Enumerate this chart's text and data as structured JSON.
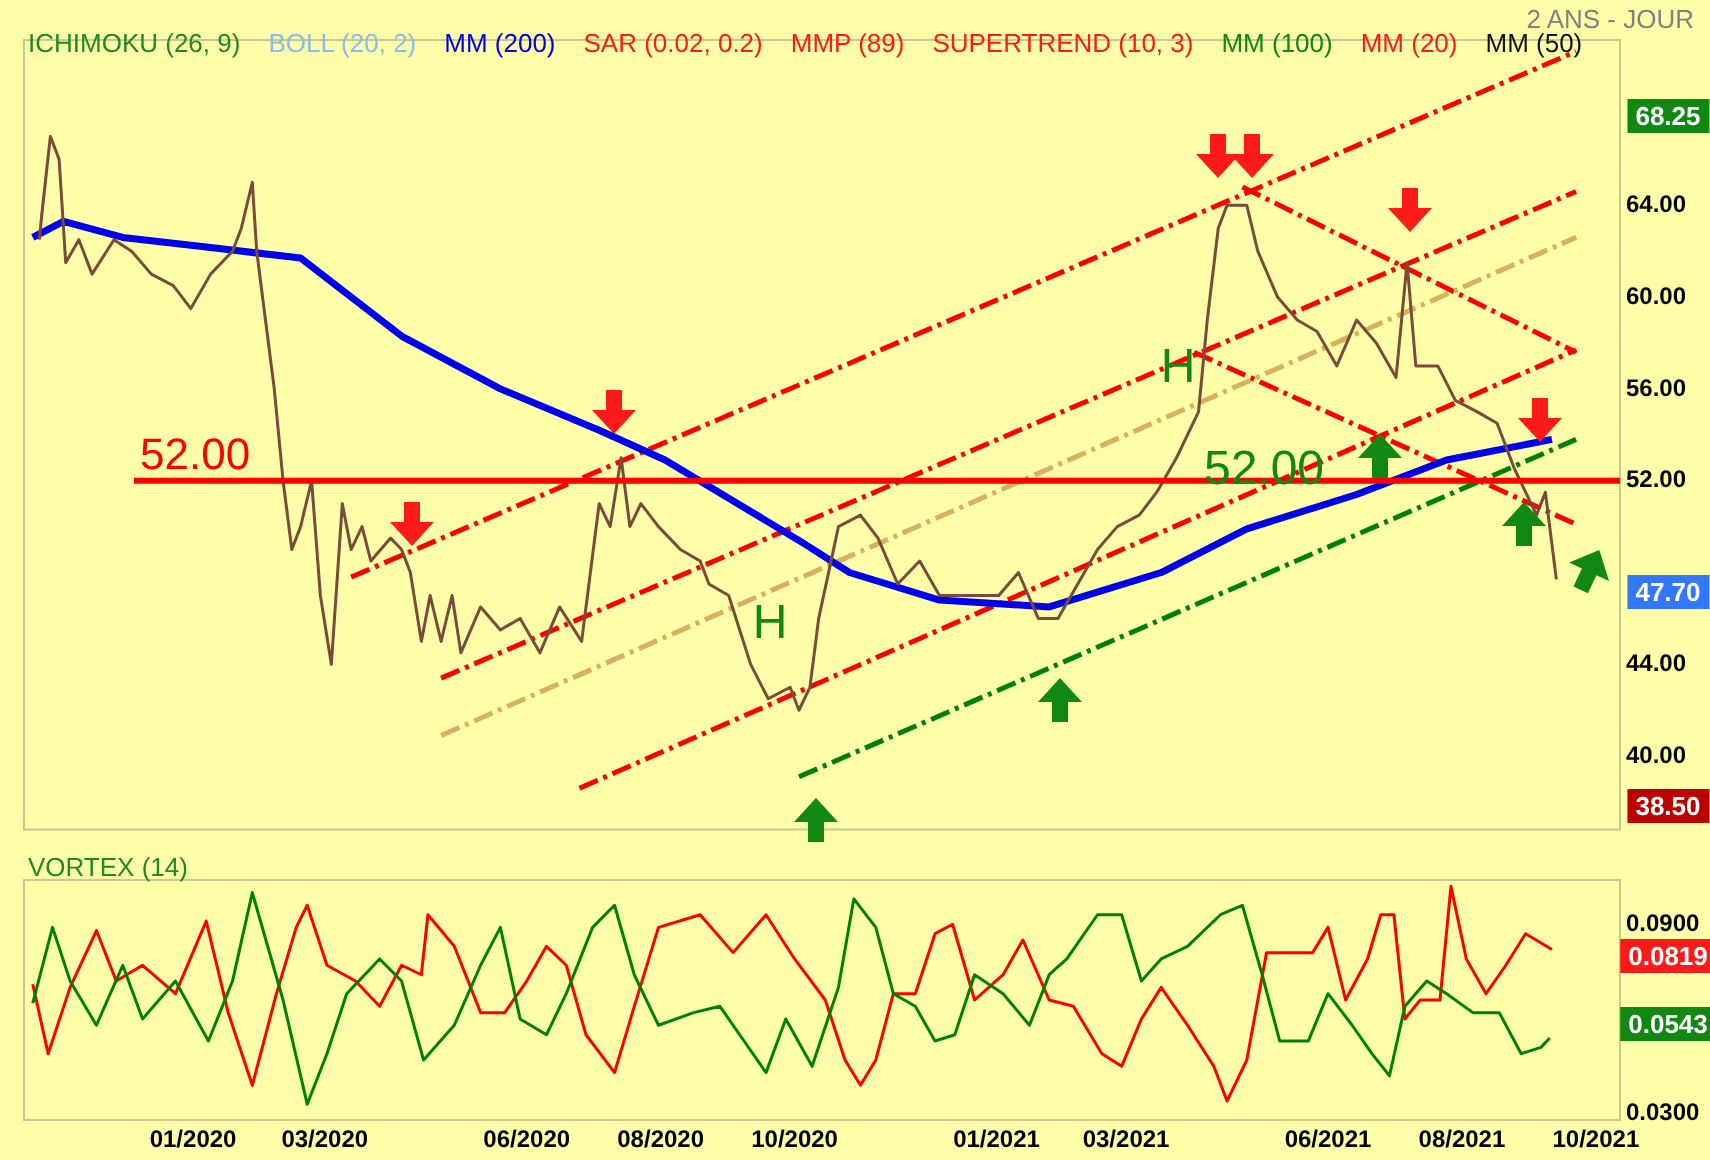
{
  "chart_data": [
    {
      "type": "line",
      "subtitle": "2 ANS - JOUR",
      "legend": "top left",
      "tick_labels": "y",
      "grid": false,
      "annotations": [
        "ICHIMOKU (26, 9)",
        "BOLL (20, 2)",
        "SAR (0.02, 0.2)",
        "MMP (89)",
        "SUPERTREND (10, 3)",
        "MM (100)",
        "MM (20)",
        "MM (50)",
        "H",
        "H",
        "52.00",
        "68.25",
        "47.70",
        "38.50"
      ],
      "x": [
        "2019-10-23",
        "2019-10-24",
        "2019-10-28",
        "2019-11-01",
        "2019-11-04",
        "2019-11-10",
        "2019-11-16",
        "2019-11-26",
        "2019-12-04",
        "2019-12-13",
        "2019-12-23",
        "2019-12-31",
        "2020-01-09",
        "2020-01-19",
        "2020-01-23",
        "2020-01-28",
        "2020-01-30",
        "2020-02-03",
        "2020-02-07",
        "2020-02-11",
        "2020-02-15",
        "2020-02-19",
        "2020-02-24",
        "2020-02-28",
        "2020-03-04",
        "2020-03-09",
        "2020-03-13",
        "2020-03-18",
        "2020-03-22",
        "2020-03-31",
        "2020-04-05",
        "2020-04-09",
        "2020-04-14",
        "2020-04-18",
        "2020-04-23",
        "2020-04-28",
        "2020-05-02",
        "2020-05-11",
        "2020-05-20",
        "2020-05-29",
        "2020-06-07",
        "2020-06-16",
        "2020-06-26",
        "2020-06-30",
        "2020-07-04",
        "2020-07-09",
        "2020-07-14",
        "2020-07-18",
        "2020-07-23",
        "2020-07-31",
        "2020-08-10",
        "2020-08-19",
        "2020-08-23",
        "2020-09-01",
        "2020-09-11",
        "2020-09-19",
        "2020-09-29",
        "2020-10-03",
        "2020-10-08",
        "2020-10-12",
        "2020-10-21",
        "2020-10-31",
        "2020-11-08",
        "2020-11-17",
        "2020-11-27",
        "2020-12-06",
        "2020-12-15",
        "2020-12-24",
        "2021-01-02",
        "2021-01-11",
        "2021-01-20",
        "2021-01-29",
        "2021-02-07",
        "2021-02-16",
        "2021-02-25",
        "2021-03-07",
        "2021-03-15",
        "2021-03-24",
        "2021-04-03",
        "2021-04-07",
        "2021-04-12",
        "2021-04-16",
        "2021-04-25",
        "2021-04-30",
        "2021-05-09",
        "2021-05-18",
        "2021-05-27",
        "2021-06-05",
        "2021-06-14",
        "2021-06-23",
        "2021-07-02",
        "2021-07-07",
        "2021-07-11",
        "2021-07-21",
        "2021-07-29",
        "2021-08-08",
        "2021-08-17",
        "2021-08-25",
        "2021-08-30",
        "2021-09-04",
        "2021-09-08",
        "2021-09-13"
      ],
      "series": [
        {
          "color": "#7a4a3a",
          "values": [
            62.5,
            63.5,
            67,
            66,
            61.5,
            62.5,
            61,
            62.5,
            62,
            61,
            60.5,
            59.5,
            61,
            62,
            63,
            65,
            62,
            59,
            56,
            52,
            49,
            50,
            52,
            47,
            44,
            51,
            49,
            50,
            48.5,
            49.5,
            49,
            48,
            45,
            47,
            45,
            47,
            44.5,
            46.5,
            45.5,
            46,
            44.5,
            46.5,
            45,
            48,
            51,
            50,
            53,
            50,
            51,
            50,
            49,
            48.5,
            47.5,
            47,
            44,
            42.5,
            43,
            42,
            43,
            46,
            50,
            50.5,
            49.5,
            47.5,
            48.5,
            47,
            47,
            47,
            47,
            48,
            46,
            46,
            47.5,
            49,
            50,
            50.5,
            51.5,
            53,
            55,
            59,
            63,
            64,
            64,
            62,
            60,
            59,
            58.5,
            57,
            59,
            58,
            56.5,
            61.5,
            57,
            57,
            55.5,
            55,
            54.5,
            52.5,
            51.5,
            50.5,
            51.5,
            47.7
          ]
        },
        {
          "name": "MM (200)",
          "color": "#0000ee",
          "x": [
            "2019-10-20",
            "2019-11-03",
            "2019-11-30",
            "2020-01-05",
            "2020-02-19",
            "2020-04-05",
            "2020-05-20",
            "2020-07-04",
            "2020-08-03",
            "2020-10-03",
            "2020-10-26",
            "2020-12-06",
            "2021-01-25",
            "2021-03-17",
            "2021-04-25",
            "2021-06-14",
            "2021-07-25",
            "2021-09-11"
          ],
          "values": [
            62.6,
            63.3,
            62.6,
            62.2,
            61.7,
            58.3,
            56,
            54.2,
            52.9,
            49.4,
            48,
            46.8,
            46.5,
            48.0,
            49.9,
            51.4,
            52.9,
            53.8
          ]
        },
        {
          "color": "#ff0000",
          "line_style": "dashed",
          "x": [
            "2020-03-13",
            "2021-09-22"
          ],
          "values": [
            47.8,
            70.7
          ]
        },
        {
          "color": "#ff0000",
          "line_style": "dashed",
          "x": [
            "2020-04-23",
            "2021-09-22"
          ],
          "values": [
            43.4,
            64.6
          ]
        },
        {
          "color": "#d8b060",
          "line_style": "dashed",
          "x": [
            "2020-04-23",
            "2021-09-22"
          ],
          "values": [
            40.9,
            62.6
          ]
        },
        {
          "color": "#ff0000",
          "line_style": "dashed",
          "x": [
            "2020-06-25",
            "2021-09-22"
          ],
          "values": [
            38.6,
            57.7
          ]
        },
        {
          "color": "#008000",
          "line_style": "dashed",
          "x": [
            "2020-10-03",
            "2021-09-22"
          ],
          "values": [
            39.1,
            53.8
          ]
        },
        {
          "color": "#ff0000",
          "line_style": "dashed",
          "x": [
            "2021-04-23",
            "2021-09-22"
          ],
          "values": [
            64.8,
            57.6
          ]
        },
        {
          "color": "#ff0000",
          "line_style": "dashed",
          "x": [
            "2021-04-01",
            "2021-09-22"
          ],
          "values": [
            57.6,
            50.1
          ]
        }
      ],
      "ref_lines": [
        {
          "axis": "y",
          "value": 52,
          "label": "52.00",
          "color": "#ff0000"
        }
      ],
      "xlim": [
        "2019-10-16",
        "2021-10-12"
      ],
      "ylim": [
        36.8,
        71.2
      ],
      "yticks": [
        {
          "value": 40,
          "label": "40.00"
        },
        {
          "value": 44,
          "label": "44.00"
        },
        {
          "value": 52,
          "label": "52.00"
        },
        {
          "value": 56,
          "label": "56.00"
        },
        {
          "value": 60,
          "label": "60.00"
        },
        {
          "value": 64,
          "label": "64.00"
        }
      ]
    },
    {
      "type": "line",
      "title": "VORTEX (14)",
      "grid": false,
      "annotations": [
        "0.0819",
        "0.0543"
      ],
      "series": [
        {
          "color": "#008000",
          "x": [
            "2019-10-20",
            "2019-10-29",
            "2019-11-06",
            "2019-11-18",
            "2019-11-30",
            "2019-12-09",
            "2019-12-24",
            "2020-01-08",
            "2020-01-19",
            "2020-01-28",
            "2020-02-11",
            "2020-02-22",
            "2020-03-02",
            "2020-03-11",
            "2020-03-26",
            "2020-04-05",
            "2020-04-15",
            "2020-04-29",
            "2020-05-11",
            "2020-05-20",
            "2020-05-29",
            "2020-06-10",
            "2020-06-19",
            "2020-07-01",
            "2020-07-11",
            "2020-07-20",
            "2020-07-31",
            "2020-08-16",
            "2020-08-28",
            "2020-09-06",
            "2020-09-18",
            "2020-09-27",
            "2020-10-09",
            "2020-10-21",
            "2020-10-28",
            "2020-11-07",
            "2020-11-15",
            "2020-11-25",
            "2020-12-04",
            "2020-12-13",
            "2020-12-22",
            "2021-01-04",
            "2021-01-16",
            "2021-01-25",
            "2021-02-02",
            "2021-02-16",
            "2021-02-27",
            "2021-03-08",
            "2021-03-17",
            "2021-03-29",
            "2021-04-13",
            "2021-04-23",
            "2021-05-02",
            "2021-05-10",
            "2021-05-23",
            "2021-06-01",
            "2021-06-12",
            "2021-06-21",
            "2021-06-29",
            "2021-07-06",
            "2021-07-16",
            "2021-07-25",
            "2021-08-06",
            "2021-08-18",
            "2021-08-28",
            "2021-09-06",
            "2021-09-10"
          ],
          "values": [
            0.065,
            0.089,
            0.072,
            0.058,
            0.077,
            0.06,
            0.072,
            0.053,
            0.072,
            0.1,
            0.066,
            0.033,
            0.049,
            0.068,
            0.079,
            0.072,
            0.047,
            0.058,
            0.077,
            0.089,
            0.06,
            0.055,
            0.068,
            0.089,
            0.096,
            0.074,
            0.058,
            0.062,
            0.064,
            0.055,
            0.043,
            0.06,
            0.045,
            0.07,
            0.098,
            0.089,
            0.068,
            0.064,
            0.053,
            0.055,
            0.074,
            0.068,
            0.058,
            0.074,
            0.079,
            0.093,
            0.093,
            0.072,
            0.079,
            0.083,
            0.093,
            0.096,
            0.074,
            0.053,
            0.053,
            0.068,
            0.058,
            0.049,
            0.042,
            0.064,
            0.072,
            0.068,
            0.062,
            0.062,
            0.049,
            0.051,
            0.054
          ]
        },
        {
          "color": "#ff0000",
          "x": [
            "2019-10-20",
            "2019-10-27",
            "2019-11-06",
            "2019-11-18",
            "2019-11-27",
            "2019-12-09",
            "2019-12-24",
            "2020-01-07",
            "2020-01-17",
            "2020-01-28",
            "2020-02-08",
            "2020-02-17",
            "2020-02-22",
            "2020-03-02",
            "2020-03-15",
            "2020-03-26",
            "2020-04-05",
            "2020-04-14",
            "2020-04-17",
            "2020-04-29",
            "2020-05-11",
            "2020-05-22",
            "2020-06-01",
            "2020-06-10",
            "2020-06-19",
            "2020-06-28",
            "2020-07-11",
            "2020-07-20",
            "2020-07-31",
            "2020-08-19",
            "2020-09-03",
            "2020-09-18",
            "2020-10-01",
            "2020-10-15",
            "2020-10-24",
            "2020-10-31",
            "2020-11-07",
            "2020-11-15",
            "2020-11-25",
            "2020-12-04",
            "2020-12-12",
            "2020-12-22",
            "2021-01-04",
            "2021-01-13",
            "2021-01-25",
            "2021-02-05",
            "2021-02-18",
            "2021-02-27",
            "2021-03-08",
            "2021-03-17",
            "2021-03-29",
            "2021-04-10",
            "2021-04-16",
            "2021-04-25",
            "2021-05-04",
            "2021-05-16",
            "2021-05-25",
            "2021-06-01",
            "2021-06-09",
            "2021-06-19",
            "2021-06-25",
            "2021-07-01",
            "2021-07-06",
            "2021-07-13",
            "2021-07-22",
            "2021-07-27",
            "2021-08-03",
            "2021-08-12",
            "2021-08-21",
            "2021-08-30",
            "2021-09-11"
          ],
          "values": [
            0.071,
            0.049,
            0.07,
            0.088,
            0.072,
            0.077,
            0.068,
            0.091,
            0.062,
            0.039,
            0.068,
            0.089,
            0.096,
            0.077,
            0.072,
            0.064,
            0.077,
            0.074,
            0.093,
            0.083,
            0.062,
            0.062,
            0.072,
            0.083,
            0.077,
            0.055,
            0.043,
            0.064,
            0.089,
            0.093,
            0.081,
            0.093,
            0.079,
            0.066,
            0.047,
            0.039,
            0.047,
            0.068,
            0.068,
            0.087,
            0.09,
            0.066,
            0.074,
            0.085,
            0.066,
            0.064,
            0.049,
            0.045,
            0.06,
            0.07,
            0.058,
            0.045,
            0.034,
            0.047,
            0.081,
            0.081,
            0.081,
            0.089,
            0.066,
            0.079,
            0.093,
            0.093,
            0.06,
            0.066,
            0.066,
            0.102,
            0.079,
            0.068,
            0.077,
            0.087,
            0.082
          ]
        }
      ],
      "xlim": [
        "2019-10-16",
        "2021-10-12"
      ],
      "xticks": [
        {
          "value": "2020-01",
          "label": "01/2020"
        },
        {
          "value": "2020-03",
          "label": "03/2020"
        },
        {
          "value": "2020-06",
          "label": "06/2020"
        },
        {
          "value": "2020-08",
          "label": "08/2020"
        },
        {
          "value": "2020-10",
          "label": "10/2020"
        },
        {
          "value": "2021-01",
          "label": "01/2021"
        },
        {
          "value": "2021-03",
          "label": "03/2021"
        },
        {
          "value": "2021-06",
          "label": "06/2021"
        },
        {
          "value": "2021-08",
          "label": "08/2021"
        },
        {
          "value": "2021-10",
          "label": "10/2021"
        }
      ],
      "ylim": [
        0.028,
        0.104
      ],
      "yticks": [
        {
          "value": 0.09,
          "label": "0.0900"
        },
        {
          "value": 0.03,
          "label": "0.0300"
        }
      ]
    }
  ]
}
